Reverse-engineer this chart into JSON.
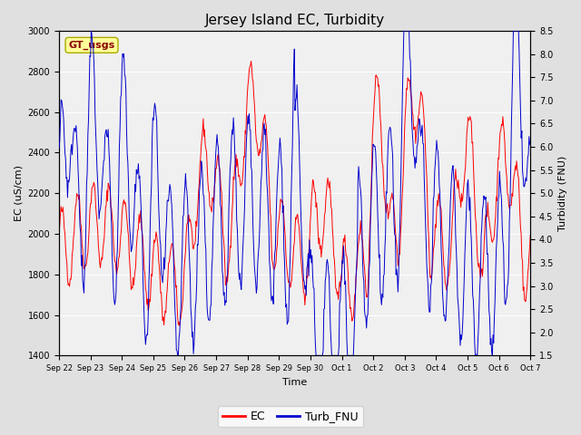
{
  "title": "Jersey Island EC, Turbidity",
  "xlabel": "Time",
  "ylabel_left": "EC (uS/cm)",
  "ylabel_right": "Turbidity (FNU)",
  "ylim_left": [
    1400,
    3000
  ],
  "ylim_right": [
    1.5,
    8.5
  ],
  "yticks_left": [
    1400,
    1600,
    1800,
    2000,
    2200,
    2400,
    2600,
    2800,
    3000
  ],
  "yticks_right": [
    1.5,
    2.0,
    2.5,
    3.0,
    3.5,
    4.0,
    4.5,
    5.0,
    5.5,
    6.0,
    6.5,
    7.0,
    7.5,
    8.0,
    8.5
  ],
  "xtick_labels": [
    "Sep 22",
    "Sep 23",
    "Sep 24",
    "Sep 25",
    "Sep 26",
    "Sep 27",
    "Sep 28",
    "Sep 29",
    "Sep 30",
    "Oct 1",
    "Oct 2",
    "Oct 3",
    "Oct 4",
    "Oct 5",
    "Oct 6",
    "Oct 7"
  ],
  "ec_color": "#FF0000",
  "turb_color": "#0000CD",
  "background_color": "#E0E0E0",
  "plot_bg_color": "#F0F0F0",
  "legend_label_ec": "EC",
  "legend_label_turb": "Turb_FNU",
  "watermark_text": "GT_usgs",
  "watermark_color": "#8B0000",
  "watermark_bg": "#FFFF99",
  "n_points": 720
}
